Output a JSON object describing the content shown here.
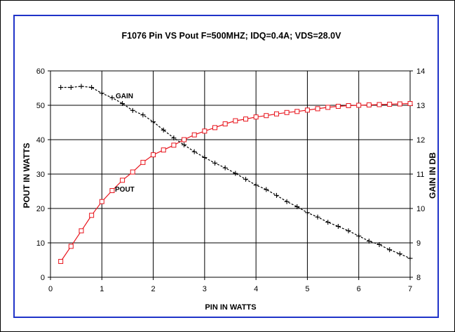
{
  "chart_data": {
    "type": "line",
    "title": "F1076 Pin VS Pout F=500MHZ; IDQ=0.4A; VDS=28.0V",
    "xlabel": "PIN IN WATTS",
    "ylabel_left": "POUT IN WATTS",
    "ylabel_right": "GAIN IN DB",
    "xlim": [
      0,
      7
    ],
    "ylim_left": [
      0,
      60
    ],
    "ylim_right": [
      8,
      14
    ],
    "x_ticks": [
      "0",
      "1",
      "2",
      "3",
      "4",
      "5",
      "6",
      "7"
    ],
    "y_left_ticks": [
      "0",
      "10",
      "20",
      "30",
      "40",
      "50",
      "60"
    ],
    "y_right_ticks": [
      "8",
      "9",
      "10",
      "11",
      "12",
      "13",
      "14"
    ],
    "grid": true,
    "series": [
      {
        "name": "POUT",
        "axis": "left",
        "color": "#e8141c",
        "marker": "square",
        "x": [
          0.2,
          0.4,
          0.6,
          0.8,
          1.0,
          1.2,
          1.4,
          1.6,
          1.8,
          2.0,
          2.2,
          2.4,
          2.6,
          2.8,
          3.0,
          3.2,
          3.4,
          3.6,
          3.8,
          4.0,
          4.2,
          4.4,
          4.6,
          4.8,
          5.0,
          5.2,
          5.4,
          5.6,
          5.8,
          6.0,
          6.2,
          6.4,
          6.6,
          6.8,
          7.0
        ],
        "y": [
          4.6,
          9.0,
          13.5,
          18.0,
          22.0,
          25.2,
          28.2,
          30.6,
          33.4,
          35.6,
          37.0,
          38.4,
          40.0,
          41.4,
          42.5,
          43.5,
          44.6,
          45.5,
          46.0,
          46.6,
          47.0,
          47.5,
          47.9,
          48.2,
          48.6,
          49.0,
          49.4,
          49.7,
          49.9,
          50.0,
          50.1,
          50.2,
          50.3,
          50.4,
          50.5
        ]
      },
      {
        "name": "GAIN",
        "axis": "right",
        "color": "#000000",
        "marker": "plus",
        "x": [
          0.2,
          0.4,
          0.6,
          0.8,
          1.0,
          1.2,
          1.4,
          1.6,
          1.8,
          2.0,
          2.2,
          2.4,
          2.6,
          2.8,
          3.0,
          3.2,
          3.4,
          3.6,
          3.8,
          4.0,
          4.2,
          4.4,
          4.6,
          4.8,
          5.0,
          5.2,
          5.4,
          5.6,
          5.8,
          6.0,
          6.2,
          6.4,
          6.6,
          6.8,
          7.0
        ],
        "y": [
          13.52,
          13.52,
          13.55,
          13.52,
          13.35,
          13.22,
          13.05,
          12.85,
          12.72,
          12.52,
          12.28,
          12.05,
          11.85,
          11.65,
          11.48,
          11.32,
          11.18,
          11.02,
          10.85,
          10.68,
          10.55,
          10.38,
          10.2,
          10.05,
          9.88,
          9.75,
          9.6,
          9.48,
          9.35,
          9.2,
          9.05,
          8.95,
          8.8,
          8.68,
          8.55
        ]
      }
    ],
    "annotations": [
      {
        "text": "GAIN",
        "series": "GAIN"
      },
      {
        "text": "POUT",
        "series": "POUT"
      }
    ]
  }
}
